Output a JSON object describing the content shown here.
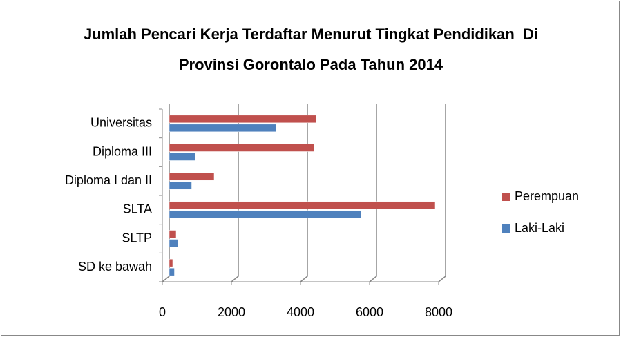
{
  "chart_data": {
    "type": "bar",
    "orientation": "horizontal",
    "title": "Jumlah Pencari Kerja Terdaftar Menurut Tingkat Pendidikan  Di  Provinsi Gorontalo Pada Tahun 2014",
    "categories": [
      "SD ke bawah",
      "SLTP",
      "SLTA",
      "Diploma I dan II",
      "Diploma III",
      "Universitas"
    ],
    "series": [
      {
        "name": "Laki-Laki",
        "color": "#4f81bd",
        "values": [
          150,
          250,
          5550,
          650,
          750,
          3100
        ]
      },
      {
        "name": "Perempuan",
        "color": "#c0504d",
        "values": [
          100,
          200,
          7700,
          1300,
          4200,
          4250
        ]
      }
    ],
    "xlim": [
      0,
      8000
    ],
    "xticks": [
      0,
      2000,
      4000,
      6000,
      8000
    ],
    "grid": true,
    "legend": "right"
  }
}
